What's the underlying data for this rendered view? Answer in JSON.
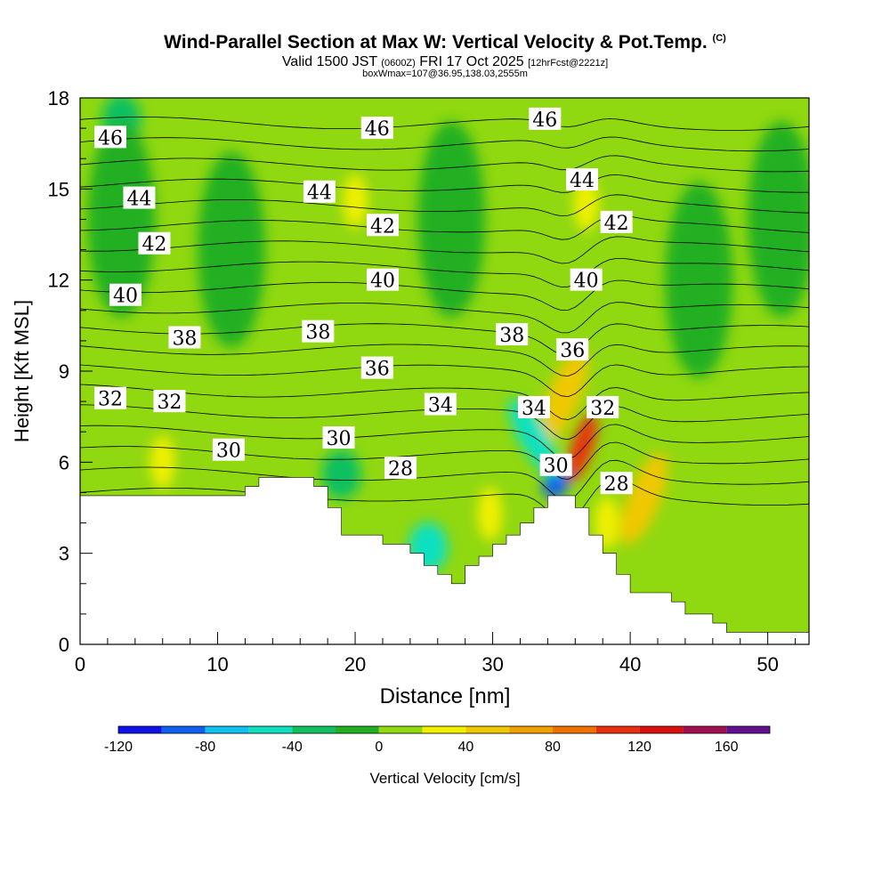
{
  "title": {
    "main": "Wind-Parallel Section at Max W: Vertical Velocity & Pot.Temp.",
    "main_tag": "(C)",
    "valid_prefix": "Valid 1500 JST",
    "valid_utc": "(0600Z)",
    "valid_date": "FRI 17 Oct 2025",
    "fcst": "[12hrFcst@2221z]",
    "boxline": "boxWmax=107@36.95,138.03,2555m"
  },
  "chart_data": {
    "type": "heatmap",
    "xlabel": "Distance [nm]",
    "ylabel": "Height [Kft MSL]",
    "xlim": [
      0,
      53
    ],
    "ylim": [
      0,
      18
    ],
    "xticks": [
      0,
      10,
      20,
      30,
      40,
      50
    ],
    "yticks": [
      0,
      3,
      6,
      9,
      12,
      15,
      18
    ],
    "terrain_kft": [
      [
        0,
        4.9
      ],
      [
        12,
        4.9
      ],
      [
        12,
        5.2
      ],
      [
        13,
        5.2
      ],
      [
        13,
        5.5
      ],
      [
        17,
        5.5
      ],
      [
        17,
        5.2
      ],
      [
        18,
        5.2
      ],
      [
        18,
        4.5
      ],
      [
        19,
        4.5
      ],
      [
        19,
        3.6
      ],
      [
        22,
        3.6
      ],
      [
        22,
        3.3
      ],
      [
        24,
        3.3
      ],
      [
        24,
        3.0
      ],
      [
        25,
        3.0
      ],
      [
        25,
        2.6
      ],
      [
        26,
        2.6
      ],
      [
        26,
        2.3
      ],
      [
        27,
        2.3
      ],
      [
        27,
        2.0
      ],
      [
        28,
        2.0
      ],
      [
        28,
        2.6
      ],
      [
        29,
        2.6
      ],
      [
        29,
        2.9
      ],
      [
        30,
        2.9
      ],
      [
        30,
        3.3
      ],
      [
        31,
        3.3
      ],
      [
        31,
        3.6
      ],
      [
        32,
        3.6
      ],
      [
        32,
        4.0
      ],
      [
        33,
        4.0
      ],
      [
        33,
        4.5
      ],
      [
        34,
        4.5
      ],
      [
        34,
        4.9
      ],
      [
        36,
        4.9
      ],
      [
        36,
        4.5
      ],
      [
        37,
        4.5
      ],
      [
        37,
        3.6
      ],
      [
        38,
        3.6
      ],
      [
        38,
        3.0
      ],
      [
        39,
        3.0
      ],
      [
        39,
        2.3
      ],
      [
        40,
        2.3
      ],
      [
        40,
        1.7
      ],
      [
        43,
        1.7
      ],
      [
        43,
        1.4
      ],
      [
        44,
        1.4
      ],
      [
        44,
        1.0
      ],
      [
        46,
        1.0
      ],
      [
        46,
        0.7
      ],
      [
        47,
        0.7
      ],
      [
        47,
        0.4
      ],
      [
        53,
        0.4
      ]
    ],
    "theta_levels_c": [
      28,
      29,
      30,
      31,
      32,
      33,
      34,
      35,
      36,
      37,
      38,
      39,
      40,
      41,
      42,
      43,
      44,
      45,
      46
    ],
    "theta_labels": [
      {
        "text": "46",
        "x": 2.2,
        "y": 16.7
      },
      {
        "text": "46",
        "x": 21.6,
        "y": 17.0
      },
      {
        "text": "46",
        "x": 33.8,
        "y": 17.3
      },
      {
        "text": "44",
        "x": 4.3,
        "y": 14.7
      },
      {
        "text": "44",
        "x": 17.4,
        "y": 14.9
      },
      {
        "text": "44",
        "x": 36.5,
        "y": 15.3
      },
      {
        "text": "42",
        "x": 5.4,
        "y": 13.2
      },
      {
        "text": "42",
        "x": 22.0,
        "y": 13.8
      },
      {
        "text": "42",
        "x": 39.0,
        "y": 13.9
      },
      {
        "text": "40",
        "x": 3.3,
        "y": 11.5
      },
      {
        "text": "40",
        "x": 22.0,
        "y": 12.0
      },
      {
        "text": "40",
        "x": 36.8,
        "y": 12.0
      },
      {
        "text": "38",
        "x": 7.6,
        "y": 10.1
      },
      {
        "text": "38",
        "x": 17.3,
        "y": 10.3
      },
      {
        "text": "38",
        "x": 31.4,
        "y": 10.2
      },
      {
        "text": "36",
        "x": 21.6,
        "y": 9.1
      },
      {
        "text": "36",
        "x": 35.8,
        "y": 9.7
      },
      {
        "text": "34",
        "x": 26.2,
        "y": 7.9
      },
      {
        "text": "34",
        "x": 33.0,
        "y": 7.8
      },
      {
        "text": "32",
        "x": 2.2,
        "y": 8.1
      },
      {
        "text": "32",
        "x": 6.5,
        "y": 8.0
      },
      {
        "text": "32",
        "x": 38.0,
        "y": 7.8
      },
      {
        "text": "30",
        "x": 10.8,
        "y": 6.4
      },
      {
        "text": "30",
        "x": 18.8,
        "y": 6.8
      },
      {
        "text": "30",
        "x": 34.6,
        "y": 5.9
      },
      {
        "text": "28",
        "x": 23.3,
        "y": 5.8
      },
      {
        "text": "28",
        "x": 39.0,
        "y": 5.3
      }
    ],
    "colorbar": {
      "label": "Vertical Velocity [cm/s]",
      "min": -120,
      "max": 180,
      "step": 20,
      "tick_values": [
        -120,
        -80,
        -40,
        0,
        40,
        80,
        120,
        160
      ],
      "tick_labels": [
        "-120",
        "-80",
        "-40",
        "0",
        "40",
        "80",
        "120",
        "160"
      ],
      "colors": [
        "#1010e8",
        "#1060f0",
        "#10c0f0",
        "#10e0c0",
        "#10c060",
        "#20b020",
        "#90d810",
        "#f0f000",
        "#f0c800",
        "#f0a000",
        "#f07000",
        "#e83010",
        "#d81010",
        "#a01050",
        "#601090"
      ]
    },
    "w_features": [
      {
        "kind": "bg",
        "x": 0,
        "y": 0,
        "w_cms": 0
      },
      {
        "kind": "updraft-core",
        "x": 36.5,
        "y": 6.5,
        "w_cms": 107
      },
      {
        "kind": "updraft-flank",
        "x": 35.2,
        "y": 8.2,
        "w_cms": 50
      },
      {
        "kind": "updraft-flank",
        "x": 41.0,
        "y": 4.8,
        "w_cms": 40
      },
      {
        "kind": "downdraft-core",
        "x": 34.6,
        "y": 5.3,
        "w_cms": -100
      },
      {
        "kind": "downdraft-flank",
        "x": 33.0,
        "y": 6.8,
        "w_cms": -50
      },
      {
        "kind": "downdraft",
        "x": 25.3,
        "y": 3.2,
        "w_cms": -50
      },
      {
        "kind": "downdraft",
        "x": 19.0,
        "y": 5.6,
        "w_cms": -40
      },
      {
        "kind": "downdraft",
        "x": 3.0,
        "y": 17.3,
        "w_cms": -30
      },
      {
        "kind": "updraft",
        "x": 20.0,
        "y": 14.6,
        "w_cms": 30
      },
      {
        "kind": "updraft",
        "x": 6.0,
        "y": 6.0,
        "w_cms": 30
      },
      {
        "kind": "updraft",
        "x": 29.8,
        "y": 4.3,
        "w_cms": 30
      },
      {
        "kind": "updraft",
        "x": 38.3,
        "y": 4.0,
        "w_cms": 30
      },
      {
        "kind": "updraft",
        "x": 36.8,
        "y": 14.5,
        "w_cms": 25
      }
    ]
  }
}
